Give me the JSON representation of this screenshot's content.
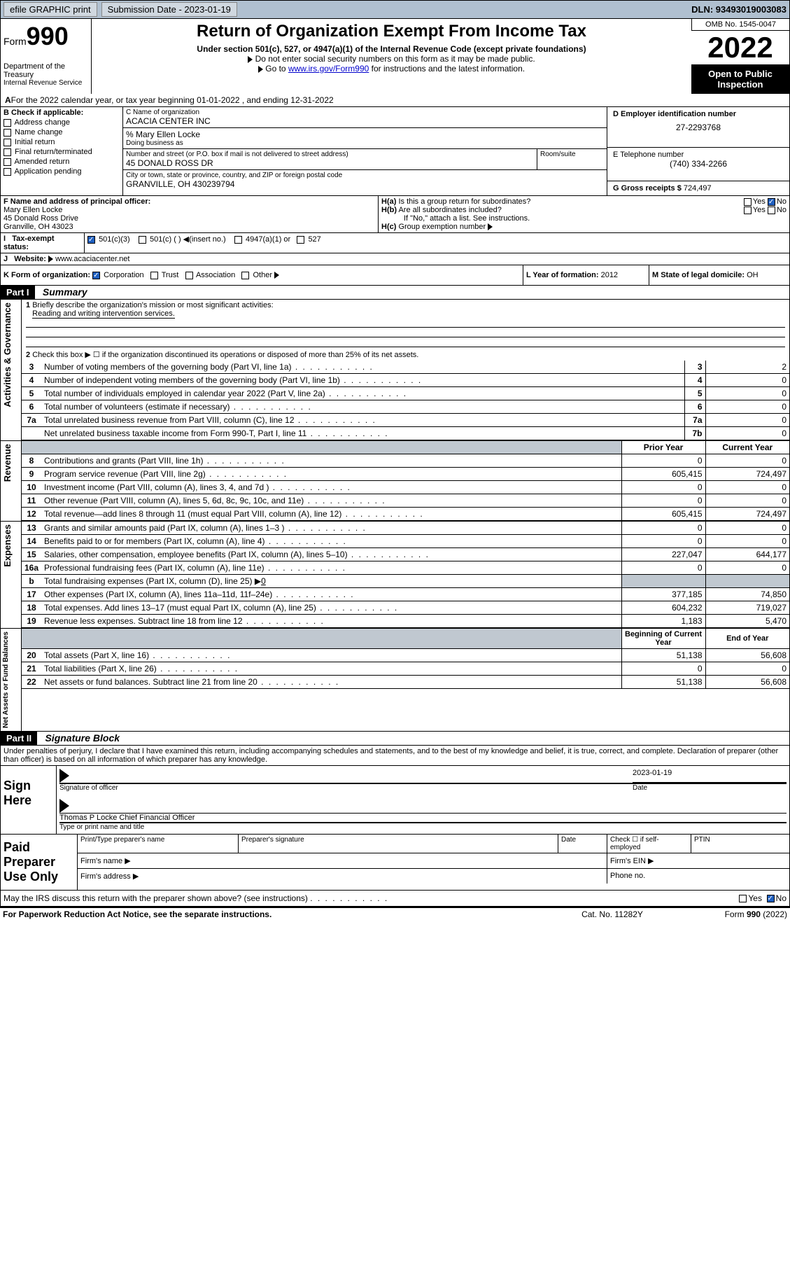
{
  "topbar": {
    "efile": "efile GRAPHIC print",
    "sub_label": "Submission Date - 2023-01-19",
    "dln": "DLN: 93493019003083"
  },
  "header": {
    "form": "Form",
    "form_num": "990",
    "dept": "Department of the Treasury",
    "irs": "Internal Revenue Service",
    "title": "Return of Organization Exempt From Income Tax",
    "sub1": "Under section 501(c), 527, or 4947(a)(1) of the Internal Revenue Code (except private foundations)",
    "sub2": "Do not enter social security numbers on this form as it may be made public.",
    "sub3_pre": "Go to ",
    "sub3_link": "www.irs.gov/Form990",
    "sub3_post": " for instructions and the latest information.",
    "omb": "OMB No. 1545-0047",
    "year": "2022",
    "inspect": "Open to Public Inspection"
  },
  "line_a": "For the 2022 calendar year, or tax year beginning 01-01-2022    , and ending 12-31-2022",
  "box_b": {
    "hdr": "B Check if applicable:",
    "opts": [
      "Address change",
      "Name change",
      "Initial return",
      "Final return/terminated",
      "Amended return",
      "Application pending"
    ]
  },
  "box_c": {
    "lbl_name": "C Name of organization",
    "name": "ACACIA CENTER INC",
    "care_lbl": "% Mary Ellen Locke",
    "dba_lbl": "Doing business as",
    "addr_lbl": "Number and street (or P.O. box if mail is not delivered to street address)",
    "room_lbl": "Room/suite",
    "addr": "45 DONALD ROSS DR",
    "city_lbl": "City or town, state or province, country, and ZIP or foreign postal code",
    "city": "GRANVILLE, OH  430239794"
  },
  "box_d": {
    "lbl": "D Employer identification number",
    "val": "27-2293768"
  },
  "box_e": {
    "lbl": "E Telephone number",
    "val": "(740) 334-2266"
  },
  "box_g": {
    "lbl": "G Gross receipts $",
    "val": "724,497"
  },
  "box_f": {
    "lbl": "F Name and address of principal officer:",
    "name": "Mary Ellen Locke",
    "addr": "45 Donald Ross Drive",
    "city": "Granville, OH  43023"
  },
  "box_h": {
    "a": "Is this a group return for subordinates?",
    "b": "Are all subordinates included?",
    "note": "If \"No,\" attach a list. See instructions.",
    "c": "Group exemption number"
  },
  "box_i": {
    "lbl": "Tax-exempt status:",
    "o1": "501(c)(3)",
    "o2": "501(c) (  )",
    "o2b": "(insert no.)",
    "o3": "4947(a)(1) or",
    "o4": "527"
  },
  "box_j": {
    "lbl": "Website:",
    "val": "www.acaciacenter.net"
  },
  "box_k": {
    "lbl": "K Form of organization:",
    "o1": "Corporation",
    "o2": "Trust",
    "o3": "Association",
    "o4": "Other"
  },
  "box_l": {
    "lbl": "L Year of formation:",
    "val": "2012"
  },
  "box_m": {
    "lbl": "M State of legal domicile:",
    "val": "OH"
  },
  "part1": {
    "hdr": "Part I",
    "title": "Summary"
  },
  "sections": {
    "ag": "Activities & Governance",
    "rev": "Revenue",
    "exp": "Expenses",
    "net": "Net Assets or Fund Balances"
  },
  "q1": {
    "lbl": "Briefly describe the organization's mission or most significant activities:",
    "val": "Reading and writing intervention services."
  },
  "q2": "Check this box ▶ ☐  if the organization discontinued its operations or disposed of more than 25% of its net assets.",
  "lines_ag": [
    {
      "n": "3",
      "t": "Number of voting members of the governing body (Part VI, line 1a)",
      "r": "3",
      "v": "2"
    },
    {
      "n": "4",
      "t": "Number of independent voting members of the governing body (Part VI, line 1b)",
      "r": "4",
      "v": "0"
    },
    {
      "n": "5",
      "t": "Total number of individuals employed in calendar year 2022 (Part V, line 2a)",
      "r": "5",
      "v": "0"
    },
    {
      "n": "6",
      "t": "Total number of volunteers (estimate if necessary)",
      "r": "6",
      "v": "0"
    },
    {
      "n": "7a",
      "t": "Total unrelated business revenue from Part VIII, column (C), line 12",
      "r": "7a",
      "v": "0"
    },
    {
      "n": "",
      "t": "Net unrelated business taxable income from Form 990-T, Part I, line 11",
      "r": "7b",
      "v": "0"
    }
  ],
  "col_hdr": {
    "py": "Prior Year",
    "cy": "Current Year",
    "boy": "Beginning of Current Year",
    "eoy": "End of Year"
  },
  "lines_rev": [
    {
      "n": "8",
      "t": "Contributions and grants (Part VIII, line 1h)",
      "py": "0",
      "cy": "0"
    },
    {
      "n": "9",
      "t": "Program service revenue (Part VIII, line 2g)",
      "py": "605,415",
      "cy": "724,497"
    },
    {
      "n": "10",
      "t": "Investment income (Part VIII, column (A), lines 3, 4, and 7d )",
      "py": "0",
      "cy": "0"
    },
    {
      "n": "11",
      "t": "Other revenue (Part VIII, column (A), lines 5, 6d, 8c, 9c, 10c, and 11e)",
      "py": "0",
      "cy": "0"
    },
    {
      "n": "12",
      "t": "Total revenue—add lines 8 through 11 (must equal Part VIII, column (A), line 12)",
      "py": "605,415",
      "cy": "724,497"
    }
  ],
  "lines_exp": [
    {
      "n": "13",
      "t": "Grants and similar amounts paid (Part IX, column (A), lines 1–3 )",
      "py": "0",
      "cy": "0"
    },
    {
      "n": "14",
      "t": "Benefits paid to or for members (Part IX, column (A), line 4)",
      "py": "0",
      "cy": "0"
    },
    {
      "n": "15",
      "t": "Salaries, other compensation, employee benefits (Part IX, column (A), lines 5–10)",
      "py": "227,047",
      "cy": "644,177"
    },
    {
      "n": "16a",
      "t": "Professional fundraising fees (Part IX, column (A), line 11e)",
      "py": "0",
      "cy": "0"
    }
  ],
  "line16b": {
    "n": "b",
    "t": "Total fundraising expenses (Part IX, column (D), line 25) ▶",
    "v": "0"
  },
  "lines_exp2": [
    {
      "n": "17",
      "t": "Other expenses (Part IX, column (A), lines 11a–11d, 11f–24e)",
      "py": "377,185",
      "cy": "74,850"
    },
    {
      "n": "18",
      "t": "Total expenses. Add lines 13–17 (must equal Part IX, column (A), line 25)",
      "py": "604,232",
      "cy": "719,027"
    },
    {
      "n": "19",
      "t": "Revenue less expenses. Subtract line 18 from line 12",
      "py": "1,183",
      "cy": "5,470"
    }
  ],
  "lines_net": [
    {
      "n": "20",
      "t": "Total assets (Part X, line 16)",
      "py": "51,138",
      "cy": "56,608"
    },
    {
      "n": "21",
      "t": "Total liabilities (Part X, line 26)",
      "py": "0",
      "cy": "0"
    },
    {
      "n": "22",
      "t": "Net assets or fund balances. Subtract line 21 from line 20",
      "py": "51,138",
      "cy": "56,608"
    }
  ],
  "part2": {
    "hdr": "Part II",
    "title": "Signature Block"
  },
  "penalty": "Under penalties of perjury, I declare that I have examined this return, including accompanying schedules and statements, and to the best of my knowledge and belief, it is true, correct, and complete. Declaration of preparer (other than officer) is based on all information of which preparer has any knowledge.",
  "sign": {
    "here": "Sign Here",
    "sig_lbl": "Signature of officer",
    "date_lbl": "Date",
    "date": "2023-01-19",
    "name": "Thomas P Locke  Chief Financial Officer",
    "name_lbl": "Type or print name and title"
  },
  "paid": {
    "hdr": "Paid Preparer Use Only",
    "c1": "Print/Type preparer's name",
    "c2": "Preparer's signature",
    "c3": "Date",
    "c4": "Check ☐ if self-employed",
    "c5": "PTIN",
    "firm": "Firm's name  ▶",
    "ein": "Firm's EIN ▶",
    "addr": "Firm's address ▶",
    "phone": "Phone no."
  },
  "discuss": "May the IRS discuss this return with the preparer shown above? (see instructions)",
  "yes": "Yes",
  "no": "No",
  "footer": {
    "l": "For Paperwork Reduction Act Notice, see the separate instructions.",
    "m": "Cat. No. 11282Y",
    "r": "Form 990 (2022)"
  }
}
